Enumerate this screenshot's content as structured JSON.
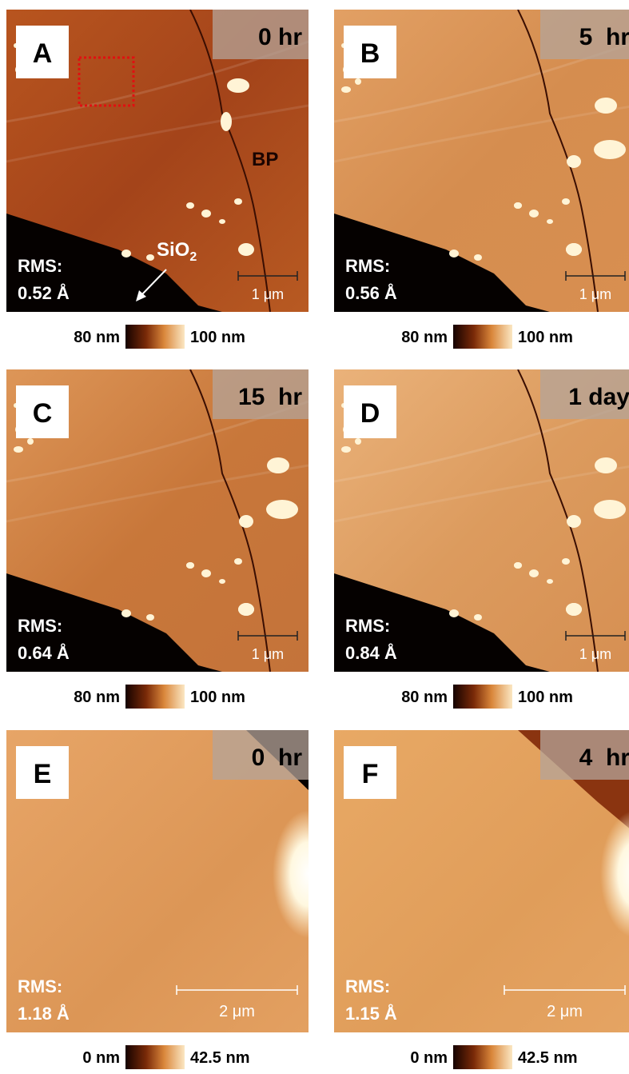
{
  "panels": [
    {
      "label": "A",
      "time": "0 hr",
      "rms_label": "RMS:",
      "rms": "0.52 Å",
      "scale_bar": "1 μm",
      "colorbar": {
        "min": "80 nm",
        "max": "100 nm"
      }
    },
    {
      "label": "B",
      "time": "5  hr",
      "rms_label": "RMS:",
      "rms": "0.56 Å",
      "scale_bar": "1 μm",
      "colorbar": {
        "min": "80 nm",
        "max": "100 nm"
      }
    },
    {
      "label": "C",
      "time": "15  hr",
      "rms_label": "RMS:",
      "rms": "0.64 Å",
      "scale_bar": "1 μm",
      "colorbar": {
        "min": "80 nm",
        "max": "100 nm"
      }
    },
    {
      "label": "D",
      "time": "1 day",
      "rms_label": "RMS:",
      "rms": "0.84 Å",
      "scale_bar": "1 μm",
      "colorbar": {
        "min": "80 nm",
        "max": "100 nm"
      }
    },
    {
      "label": "E",
      "time": "0  hr",
      "rms_label": "RMS:",
      "rms": "1.18 Å",
      "scale_bar": "2 μm",
      "colorbar": {
        "min": "0 nm",
        "max": "42.5 nm"
      }
    },
    {
      "label": "F",
      "time": "4  hr",
      "rms_label": "RMS:",
      "rms": "1.15 Å",
      "scale_bar": "2 μm",
      "colorbar": {
        "min": "0 nm",
        "max": "42.5 nm"
      }
    }
  ],
  "annotations": {
    "bp": "BP",
    "sio2": {
      "text": "SiO",
      "subscript": "2"
    }
  }
}
